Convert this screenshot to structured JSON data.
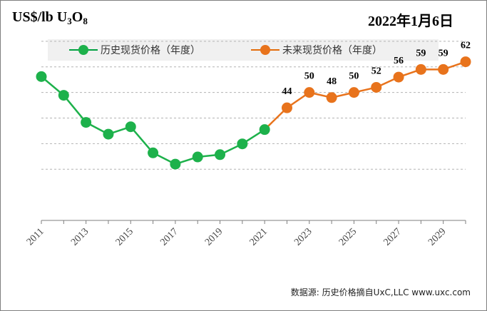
{
  "header": {
    "unit_prefix": "US$/lb U",
    "unit_sub1": "3",
    "unit_mid": "O",
    "unit_sub2": "8",
    "date": "2022年1月6日"
  },
  "source_note": "数据源: 历史价格摘自UxC,LLC  www.uxc.com",
  "colors": {
    "historical": "#1db14b",
    "historical_line": "#00a040",
    "forecast": "#e8731c",
    "forecast_line": "#e36c0a",
    "grid": "#b3b3b3"
  },
  "chart_data": {
    "type": "line",
    "title": "",
    "xlabel": "",
    "ylabel": "US$/lb U3O8",
    "xlim": [
      2011,
      2030
    ],
    "ylim": [
      0,
      80
    ],
    "x_tick_labels": [
      "2011",
      "2013",
      "2015",
      "2017",
      "2019",
      "2021",
      "2023",
      "2025",
      "2027",
      "2029"
    ],
    "y_gridlines": [
      20,
      30,
      40,
      50,
      60,
      70
    ],
    "legend_position": "top",
    "series": [
      {
        "name": "历史现货价格（年度）",
        "color": "#1db14b",
        "labeled": false,
        "x": [
          2011,
          2012,
          2013,
          2014,
          2015,
          2016,
          2017,
          2018,
          2019,
          2020,
          2021
        ],
        "y": [
          56.2,
          48.9,
          38.3,
          33.7,
          36.6,
          26.4,
          22.0,
          24.8,
          25.7,
          29.9,
          35.5
        ]
      },
      {
        "name": "未来现货价格（年度）",
        "color": "#e8731c",
        "labeled": true,
        "x": [
          2021,
          2022,
          2023,
          2024,
          2025,
          2026,
          2027,
          2028,
          2029,
          2030
        ],
        "y": [
          35.5,
          44,
          50,
          48,
          50,
          52,
          56,
          59,
          59,
          62
        ],
        "data_labels": [
          "",
          "44",
          "50",
          "48",
          "50",
          "52",
          "56",
          "59",
          "59",
          "62"
        ]
      }
    ]
  }
}
